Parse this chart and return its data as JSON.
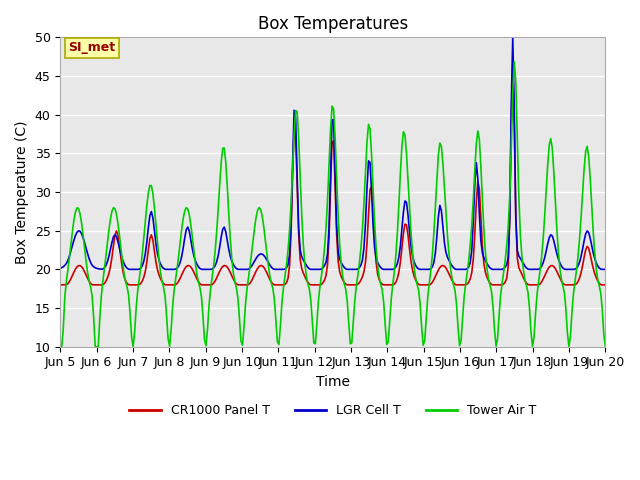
{
  "title": "Box Temperatures",
  "xlabel": "Time",
  "ylabel": "Box Temperature (C)",
  "ylim": [
    10,
    50
  ],
  "xlim": [
    0,
    15
  ],
  "x_tick_labels": [
    "Jun 5",
    "Jun 6",
    "Jun 7",
    "Jun 8",
    "Jun 9",
    "Jun 10",
    "Jun 11",
    "Jun 12",
    "Jun 13",
    "Jun 14",
    "Jun 15",
    "Jun 16",
    "Jun 17",
    "Jun 18",
    "Jun 19",
    "Jun 20"
  ],
  "bg_color": "#e8e8e8",
  "fig_color": "#ffffff",
  "legend_labels": [
    "CR1000 Panel T",
    "LGR Cell T",
    "Tower Air T"
  ],
  "legend_colors": [
    "#cc0000",
    "#0000cc",
    "#00cc00"
  ],
  "annotation_text": "SI_met",
  "annotation_color": "#990000",
  "annotation_bg": "#ffffaa",
  "annotation_edge": "#aaaa00",
  "title_fontsize": 12,
  "axis_label_fontsize": 10,
  "tick_fontsize": 9,
  "grid_color": "#ffffff",
  "grid_lw": 1.0,
  "line_lw": 1.2
}
